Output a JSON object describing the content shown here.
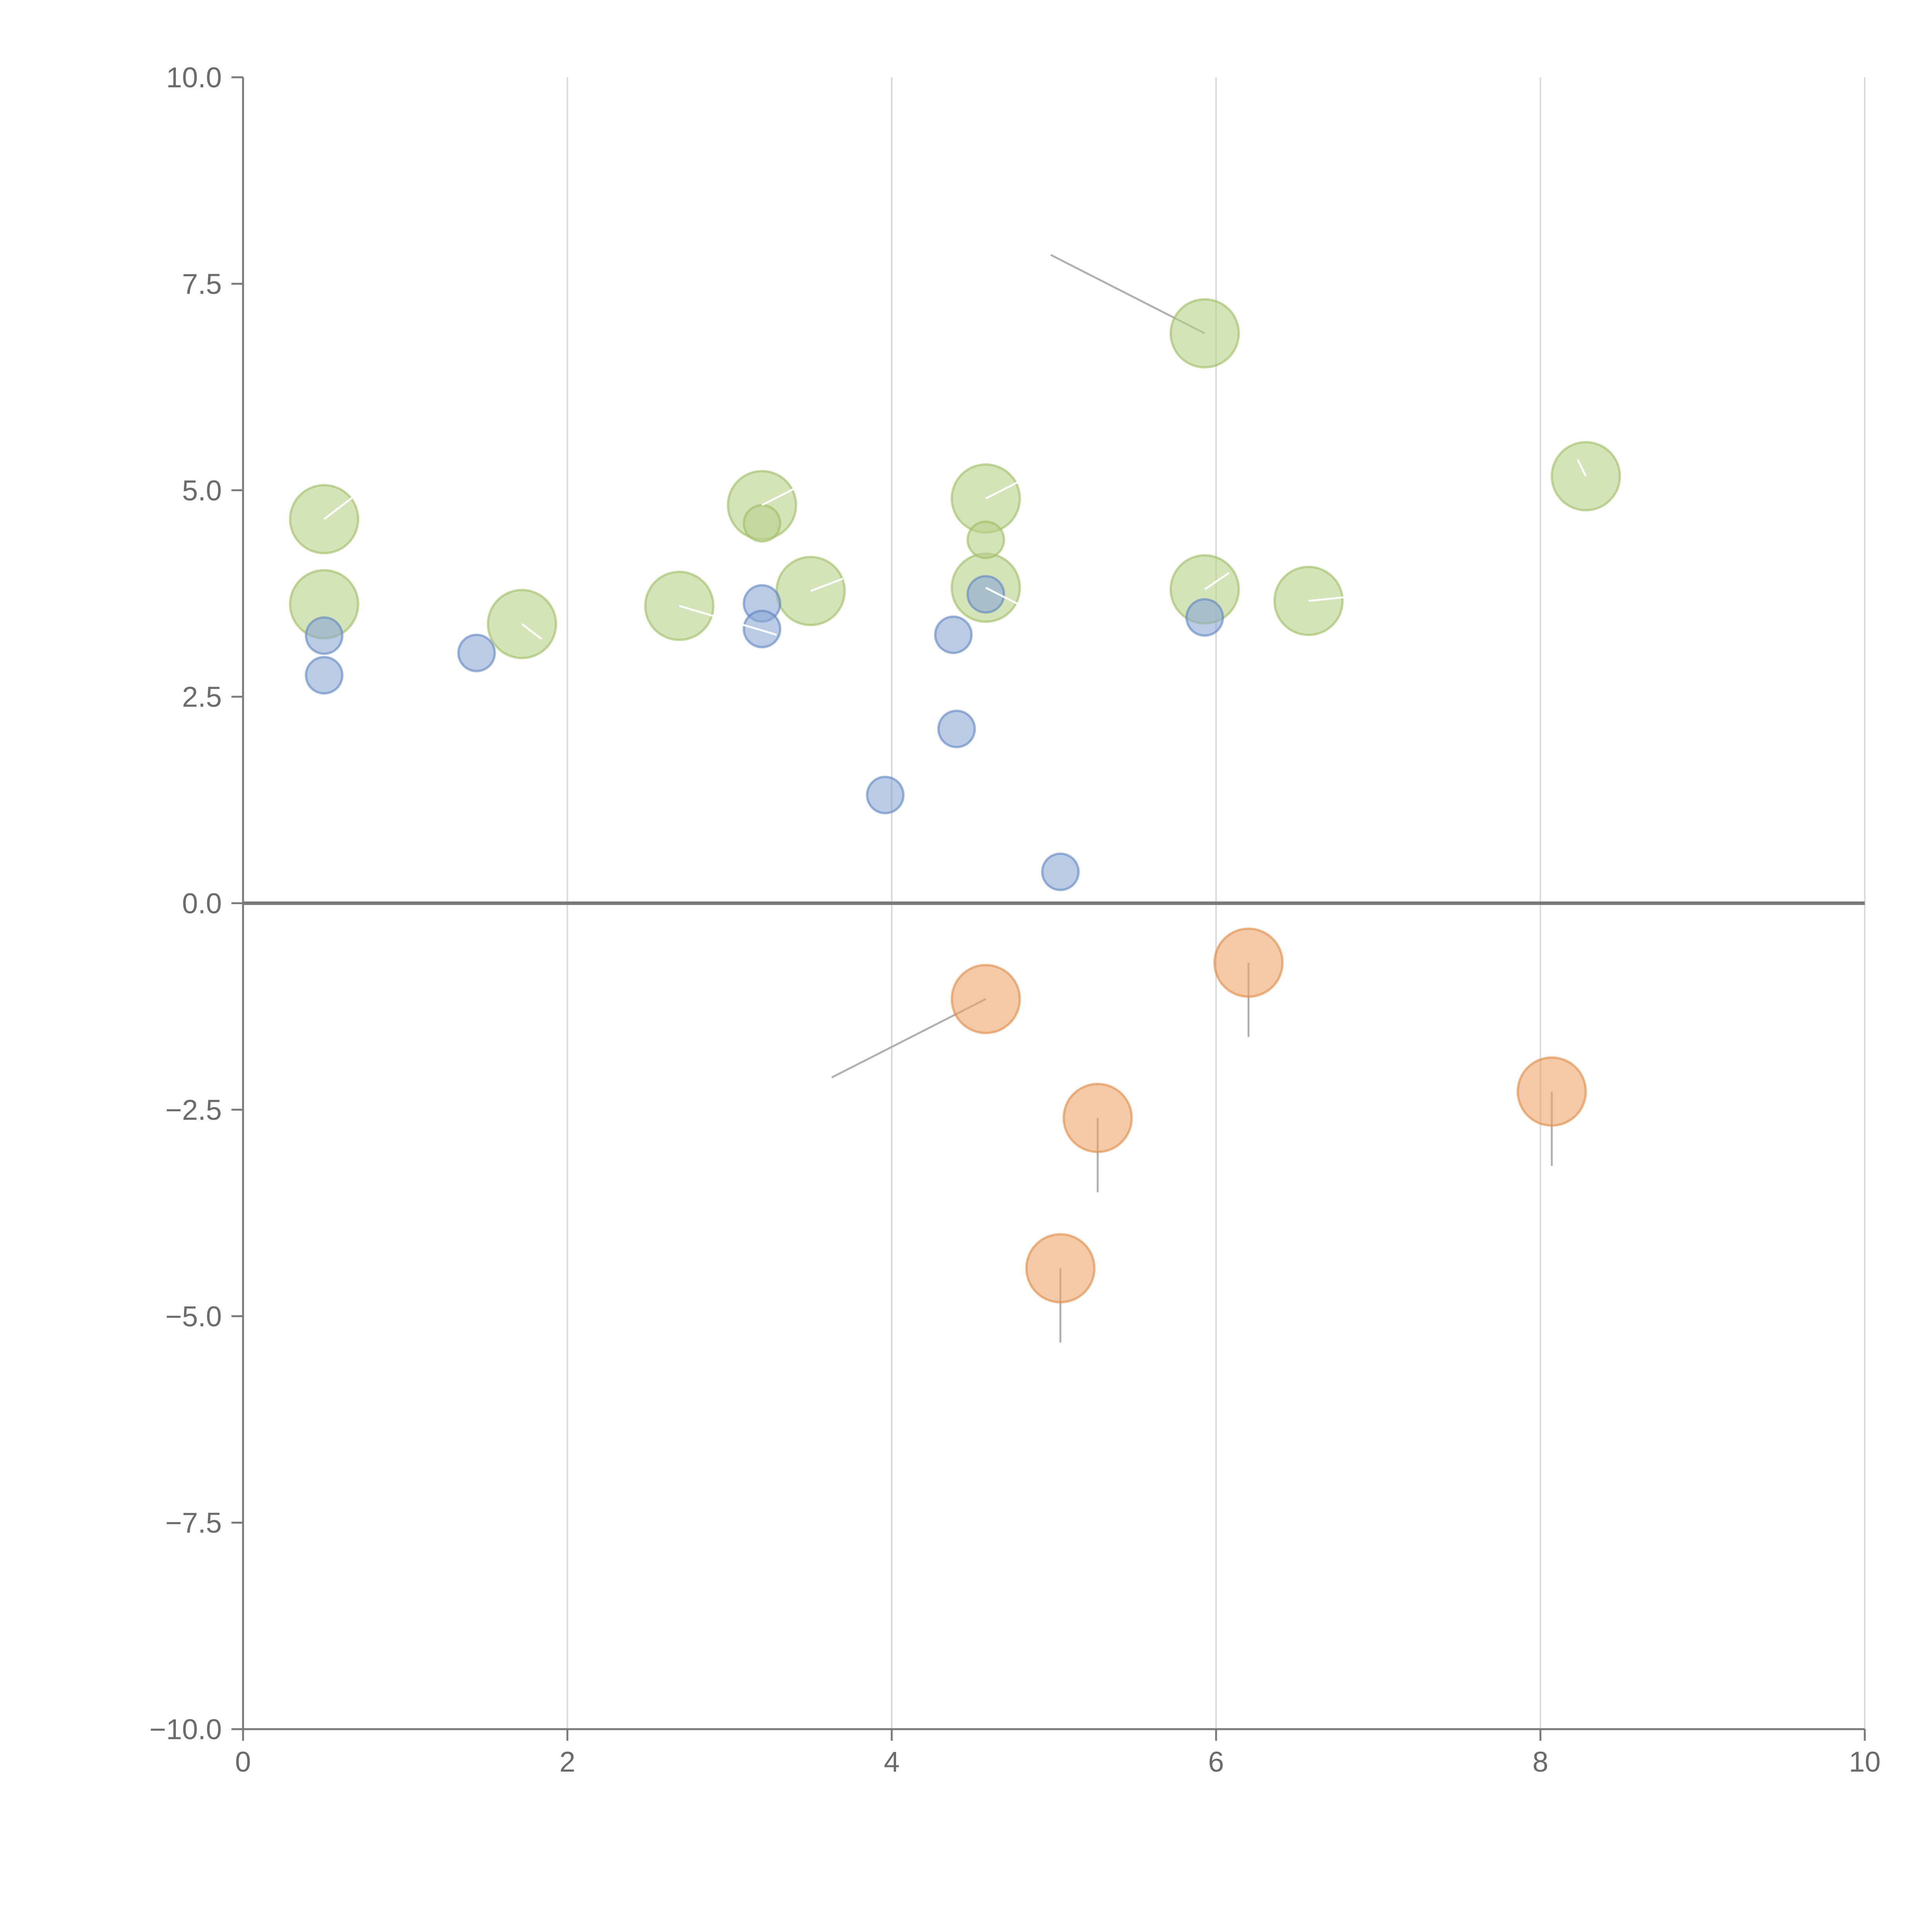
{
  "chart_data": {
    "type": "scatter",
    "title": "",
    "xlabel": "",
    "ylabel": "",
    "xlim": [
      0,
      10
    ],
    "ylim": [
      -10,
      10
    ],
    "x_ticks": [
      0,
      2,
      4,
      6,
      8,
      10
    ],
    "x_tick_labels": [
      "0",
      "2",
      "4",
      "6",
      "8",
      "10"
    ],
    "y_ticks": [
      -10,
      -7.5,
      -5,
      -2.5,
      0,
      2.5,
      5,
      7.5,
      10
    ],
    "y_tick_labels": [
      "−10.0",
      "−7.5",
      "−5.0",
      "−2.5",
      "0.0",
      "2.5",
      "5.0",
      "7.5",
      "10.0"
    ],
    "grid": {
      "vertical": true,
      "horizontal": false
    },
    "reference_line_y": 0,
    "colors": {
      "green_fill": "#b9d08a",
      "green_stroke": "#9fbd62",
      "blue_fill": "#8aa8d4",
      "blue_stroke": "#5f84c0",
      "orange_fill": "#eba56e",
      "orange_stroke": "#e08a45",
      "leader_gray": "#b0b0b0",
      "leader_white": "#ffffff"
    },
    "series": [
      {
        "name": "green",
        "color": "green",
        "size": "large",
        "points": [
          {
            "x": 0.5,
            "y": 4.65,
            "leader": {
              "dx": 0.2,
              "dy": 0.3,
              "color": "white"
            }
          },
          {
            "x": 0.5,
            "y": 3.62
          },
          {
            "x": 1.72,
            "y": 3.38,
            "leader": {
              "dx": 0.12,
              "dy": -0.18,
              "color": "white"
            }
          },
          {
            "x": 2.69,
            "y": 3.6,
            "leader": {
              "dx": 0.6,
              "dy": -0.35,
              "color": "white"
            }
          },
          {
            "x": 3.2,
            "y": 4.82,
            "leader": {
              "dx": 0.2,
              "dy": 0.2,
              "color": "white"
            }
          },
          {
            "x": 3.5,
            "y": 3.78,
            "leader": {
              "dx": 0.2,
              "dy": 0.15,
              "color": "white"
            }
          },
          {
            "x": 4.58,
            "y": 4.9,
            "leader": {
              "dx": 0.2,
              "dy": 0.2,
              "color": "white"
            }
          },
          {
            "x": 4.58,
            "y": 3.82,
            "leader": {
              "dx": 0.2,
              "dy": -0.2,
              "color": "white"
            }
          },
          {
            "x": 5.93,
            "y": 6.9,
            "leader": {
              "dx": -0.95,
              "dy": 0.95,
              "color": "gray"
            }
          },
          {
            "x": 5.93,
            "y": 3.8,
            "leader": {
              "dx": 0.15,
              "dy": 0.2,
              "color": "white"
            }
          },
          {
            "x": 6.57,
            "y": 3.66,
            "leader": {
              "dx": 0.25,
              "dy": 0.05,
              "color": "white"
            }
          },
          {
            "x": 8.28,
            "y": 5.17,
            "leader": {
              "dx": -0.05,
              "dy": 0.2,
              "color": "white"
            }
          }
        ]
      },
      {
        "name": "green-small",
        "color": "green",
        "size": "small",
        "points": [
          {
            "x": 3.2,
            "y": 4.6
          },
          {
            "x": 4.58,
            "y": 4.4
          }
        ]
      },
      {
        "name": "blue",
        "color": "blue",
        "size": "small",
        "points": [
          {
            "x": 0.5,
            "y": 3.24
          },
          {
            "x": 0.5,
            "y": 2.76
          },
          {
            "x": 1.44,
            "y": 3.03
          },
          {
            "x": 3.2,
            "y": 3.63
          },
          {
            "x": 3.2,
            "y": 3.32
          },
          {
            "x": 3.96,
            "y": 1.31
          },
          {
            "x": 4.38,
            "y": 3.25
          },
          {
            "x": 4.4,
            "y": 2.11
          },
          {
            "x": 4.58,
            "y": 3.74
          },
          {
            "x": 5.04,
            "y": 0.38
          },
          {
            "x": 5.93,
            "y": 3.46
          }
        ]
      },
      {
        "name": "orange",
        "color": "orange",
        "size": "large",
        "points": [
          {
            "x": 4.58,
            "y": -1.16,
            "leader": {
              "dx": -0.95,
              "dy": -0.95,
              "color": "gray"
            }
          },
          {
            "x": 5.27,
            "y": -2.6,
            "leader": {
              "dx": 0,
              "dy": -0.9,
              "color": "gray"
            }
          },
          {
            "x": 5.04,
            "y": -4.42,
            "leader": {
              "dx": 0,
              "dy": -0.9,
              "color": "gray"
            }
          },
          {
            "x": 6.2,
            "y": -0.72,
            "leader": {
              "dx": 0,
              "dy": -0.9,
              "color": "gray"
            }
          },
          {
            "x": 8.07,
            "y": -2.28,
            "leader": {
              "dx": 0,
              "dy": -0.9,
              "color": "gray"
            }
          }
        ]
      }
    ]
  }
}
